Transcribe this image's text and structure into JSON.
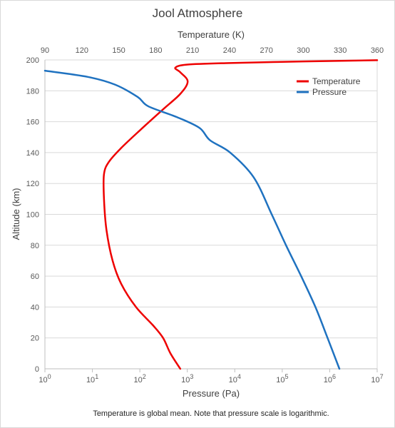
{
  "chart_data": {
    "type": "line",
    "title": "Jool Atmosphere",
    "note": "Temperature is global mean.  Note that pressure scale is logarithmic.",
    "y_axis": {
      "label": "Altitude (km)",
      "range": [
        0,
        200
      ],
      "ticks": [
        0,
        20,
        40,
        60,
        80,
        100,
        120,
        140,
        160,
        180,
        200
      ]
    },
    "x_top_axis": {
      "label": "Temperature (K)",
      "range": [
        90,
        360
      ],
      "ticks": [
        90,
        120,
        150,
        180,
        210,
        240,
        270,
        300,
        330,
        360
      ]
    },
    "x_bottom_axis": {
      "label": "Pressure (Pa)",
      "scale": "log",
      "range": [
        1,
        10000000
      ],
      "tick_exponents": [
        0,
        1,
        2,
        3,
        4,
        5,
        6,
        7
      ],
      "tick_base": "10"
    },
    "grid": "horizontal",
    "legend_position": "top-right",
    "series": [
      {
        "name": "Temperature",
        "color": "#ee0000",
        "axis": "top",
        "points": [
          {
            "x": 200,
            "y": 0
          },
          {
            "x": 192,
            "y": 10
          },
          {
            "x": 186,
            "y": 20
          },
          {
            "x": 178,
            "y": 28
          },
          {
            "x": 164,
            "y": 40
          },
          {
            "x": 152,
            "y": 55
          },
          {
            "x": 145,
            "y": 70
          },
          {
            "x": 140,
            "y": 90
          },
          {
            "x": 138,
            "y": 110
          },
          {
            "x": 138,
            "y": 126
          },
          {
            "x": 142,
            "y": 134
          },
          {
            "x": 152,
            "y": 143
          },
          {
            "x": 168,
            "y": 155
          },
          {
            "x": 186,
            "y": 168
          },
          {
            "x": 200,
            "y": 178
          },
          {
            "x": 206,
            "y": 186
          },
          {
            "x": 200,
            "y": 192
          },
          {
            "x": 196,
            "y": 195
          },
          {
            "x": 206,
            "y": 197
          },
          {
            "x": 240,
            "y": 198
          },
          {
            "x": 300,
            "y": 199
          },
          {
            "x": 360,
            "y": 199.8
          }
        ]
      },
      {
        "name": "Pressure",
        "color": "#1f72c0",
        "axis": "bottom",
        "points": [
          {
            "x": 1600000,
            "y": 0
          },
          {
            "x": 900000,
            "y": 20
          },
          {
            "x": 500000,
            "y": 40
          },
          {
            "x": 250000,
            "y": 60
          },
          {
            "x": 120000,
            "y": 80
          },
          {
            "x": 60000,
            "y": 100
          },
          {
            "x": 25000,
            "y": 124
          },
          {
            "x": 8000,
            "y": 140
          },
          {
            "x": 3000,
            "y": 148
          },
          {
            "x": 1800,
            "y": 156
          },
          {
            "x": 600,
            "y": 163
          },
          {
            "x": 150,
            "y": 170
          },
          {
            "x": 90,
            "y": 176
          },
          {
            "x": 30,
            "y": 184
          },
          {
            "x": 8,
            "y": 189
          },
          {
            "x": 1,
            "y": 193
          }
        ]
      }
    ]
  }
}
